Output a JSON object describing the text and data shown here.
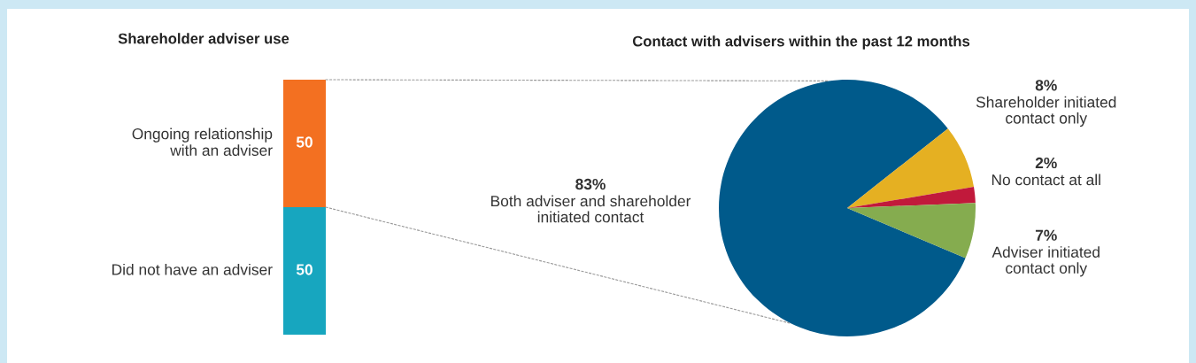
{
  "chart_data": [
    {
      "type": "bar",
      "title": "Shareholder adviser use",
      "stacked": true,
      "categories": [
        null
      ],
      "data_labels": true,
      "series": [
        {
          "name": "Did not have an adviser",
          "color": "#17a6bf",
          "values": [
            50
          ]
        },
        {
          "name": "Ongoing relationship\nwith an adviser",
          "color": "#f37021",
          "values": [
            50
          ]
        }
      ]
    },
    {
      "type": "pie",
      "title": "Contact with advisers within the past 12 months",
      "categories": [
        "Both adviser and shareholder\ninitiated contact",
        "Shareholder initiated\ncontact only",
        "No contact at all",
        "Adviser initiated\ncontact only"
      ],
      "values": [
        83,
        8,
        2,
        7
      ],
      "value_labels": [
        "83%",
        "8%",
        "2%",
        "7%"
      ],
      "colors": [
        "#005a8b",
        "#e5b022",
        "#c1193b",
        "#85ac4f"
      ]
    }
  ]
}
